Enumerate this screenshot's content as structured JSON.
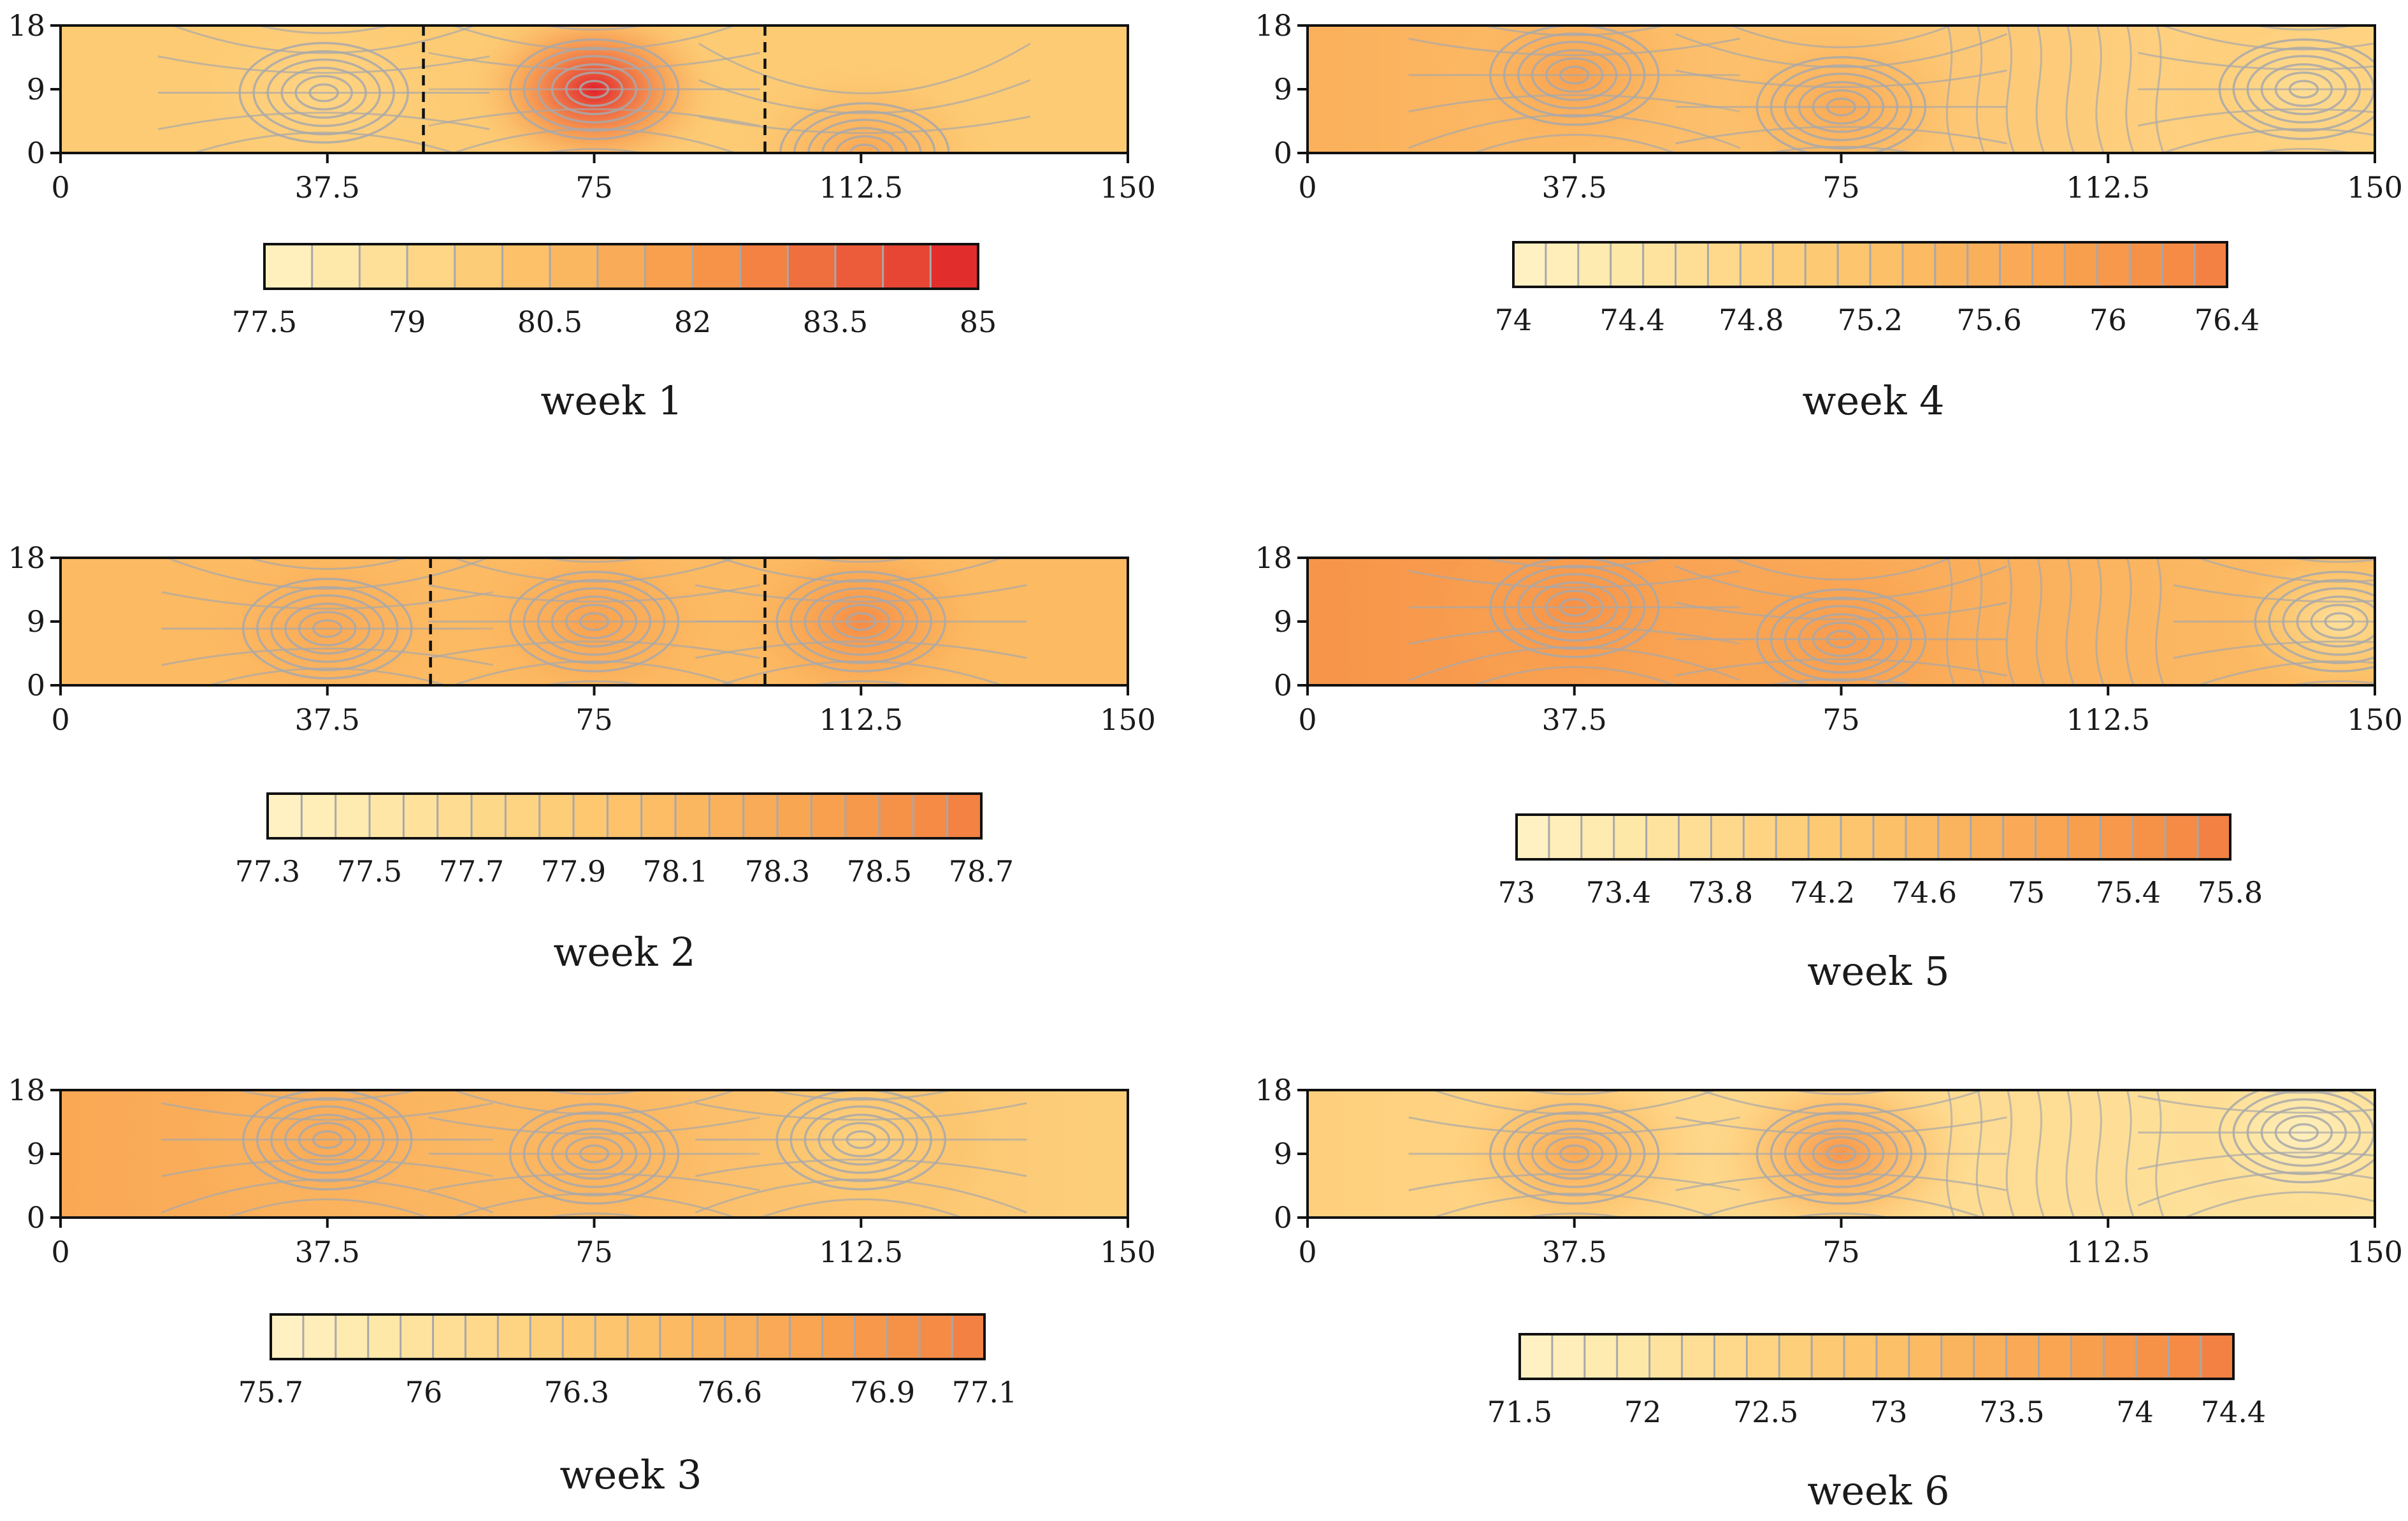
{
  "figure": {
    "description_ignored": false
  },
  "colors": {
    "c0": "#fff3c6",
    "c1": "#fee8a8",
    "c2": "#fed889",
    "c3": "#fdc76e",
    "c4": "#fbb45e",
    "c5": "#f9a24f",
    "c6": "#f58c45",
    "c7": "#ef6c3e",
    "c8": "#e84a35",
    "c9": "#e0202a",
    "contour": "#a8a8aa",
    "frame": "#111111",
    "divider": "#111111"
  },
  "chart_data": [
    {
      "type": "heatmap",
      "title": "week 1",
      "x_ticks": [
        "0",
        "37.5",
        "75",
        "112.5",
        "150"
      ],
      "y_ticks": [
        "0",
        "9",
        "18"
      ],
      "xlim": [
        0,
        150
      ],
      "ylim": [
        0,
        18
      ],
      "colorbar_ticks": [
        "77.5",
        "79",
        "80.5",
        "82",
        "83.5",
        "85"
      ],
      "colorbar_range": [
        77.5,
        85
      ],
      "colorbar_bands": 15,
      "dividers_x": [
        51,
        99
      ],
      "base_value": 79.8,
      "hotspots": [
        {
          "x": 75,
          "y": 9,
          "value": 85
        },
        {
          "x": 37,
          "y": 8.5,
          "value": 79.3
        },
        {
          "x": 113,
          "y": 0,
          "value": 81.5
        }
      ]
    },
    {
      "type": "heatmap",
      "title": "week 2",
      "x_ticks": [
        "0",
        "37.5",
        "75",
        "112.5",
        "150"
      ],
      "y_ticks": [
        "0",
        "9",
        "18"
      ],
      "xlim": [
        0,
        150
      ],
      "ylim": [
        0,
        18
      ],
      "colorbar_ticks": [
        "77.3",
        "77.5",
        "77.7",
        "77.9",
        "78.1",
        "78.3",
        "78.5",
        "78.7"
      ],
      "colorbar_range": [
        77.3,
        78.7
      ],
      "colorbar_bands": 21,
      "dividers_x": [
        52,
        99
      ],
      "base_value": 78.1,
      "hotspots": [
        {
          "x": 37.5,
          "y": 8,
          "value": 78.3
        },
        {
          "x": 75,
          "y": 9,
          "value": 78.4
        },
        {
          "x": 112.5,
          "y": 9,
          "value": 78.6
        }
      ]
    },
    {
      "type": "heatmap",
      "title": "week 3",
      "x_ticks": [
        "0",
        "37.5",
        "75",
        "112.5",
        "150"
      ],
      "y_ticks": [
        "0",
        "9",
        "18"
      ],
      "xlim": [
        0,
        150
      ],
      "ylim": [
        0,
        18
      ],
      "colorbar_ticks": [
        "75.7",
        "76",
        "76.3",
        "76.6",
        "76.9",
        "77.1"
      ],
      "colorbar_range": [
        75.7,
        77.1
      ],
      "colorbar_bands": 22,
      "dividers_x": [],
      "base_value": 76.5,
      "hotspots": [
        {
          "x": 37.5,
          "y": 11,
          "value": 76.7
        },
        {
          "x": 75,
          "y": 9,
          "value": 76.6
        },
        {
          "x": 112.5,
          "y": 11,
          "value": 76.2
        }
      ]
    },
    {
      "type": "heatmap",
      "title": "week 4",
      "x_ticks": [
        "0",
        "37.5",
        "75",
        "112.5",
        "150"
      ],
      "y_ticks": [
        "0",
        "9",
        "18"
      ],
      "xlim": [
        0,
        150
      ],
      "ylim": [
        0,
        18
      ],
      "colorbar_ticks": [
        "74",
        "74.4",
        "74.8",
        "75.2",
        "75.6",
        "76",
        "76.4"
      ],
      "colorbar_range": [
        74,
        76.4
      ],
      "colorbar_bands": 22,
      "dividers_x": [],
      "base_value": 75.2,
      "hotspots": [
        {
          "x": 37.5,
          "y": 11,
          "value": 75.9
        },
        {
          "x": 75,
          "y": 6.5,
          "value": 75.7
        },
        {
          "x": 140,
          "y": 9,
          "value": 74.6
        }
      ]
    },
    {
      "type": "heatmap",
      "title": "week 5",
      "x_ticks": [
        "0",
        "37.5",
        "75",
        "112.5",
        "150"
      ],
      "y_ticks": [
        "0",
        "9",
        "18"
      ],
      "xlim": [
        0,
        150
      ],
      "ylim": [
        0,
        18
      ],
      "colorbar_ticks": [
        "73",
        "73.4",
        "73.8",
        "74.2",
        "74.6",
        "75",
        "75.4",
        "75.8"
      ],
      "colorbar_range": [
        73,
        75.8
      ],
      "colorbar_bands": 22,
      "dividers_x": [],
      "base_value": 75.0,
      "hotspots": [
        {
          "x": 37.5,
          "y": 11,
          "value": 75.5
        },
        {
          "x": 75,
          "y": 6.5,
          "value": 75.3
        },
        {
          "x": 145,
          "y": 9,
          "value": 73.6
        }
      ]
    },
    {
      "type": "heatmap",
      "title": "week 6",
      "x_ticks": [
        "0",
        "37.5",
        "75",
        "112.5",
        "150"
      ],
      "y_ticks": [
        "0",
        "9",
        "18"
      ],
      "xlim": [
        0,
        150
      ],
      "ylim": [
        0,
        18
      ],
      "colorbar_ticks": [
        "71.5",
        "72",
        "72.5",
        "73",
        "73.5",
        "74",
        "74.4"
      ],
      "colorbar_range": [
        71.5,
        74.4
      ],
      "colorbar_bands": 22,
      "dividers_x": [],
      "base_value": 72.6,
      "hotspots": [
        {
          "x": 37.5,
          "y": 9,
          "value": 73.6
        },
        {
          "x": 75,
          "y": 9,
          "value": 74.0
        },
        {
          "x": 140,
          "y": 12,
          "value": 71.6
        }
      ]
    }
  ]
}
